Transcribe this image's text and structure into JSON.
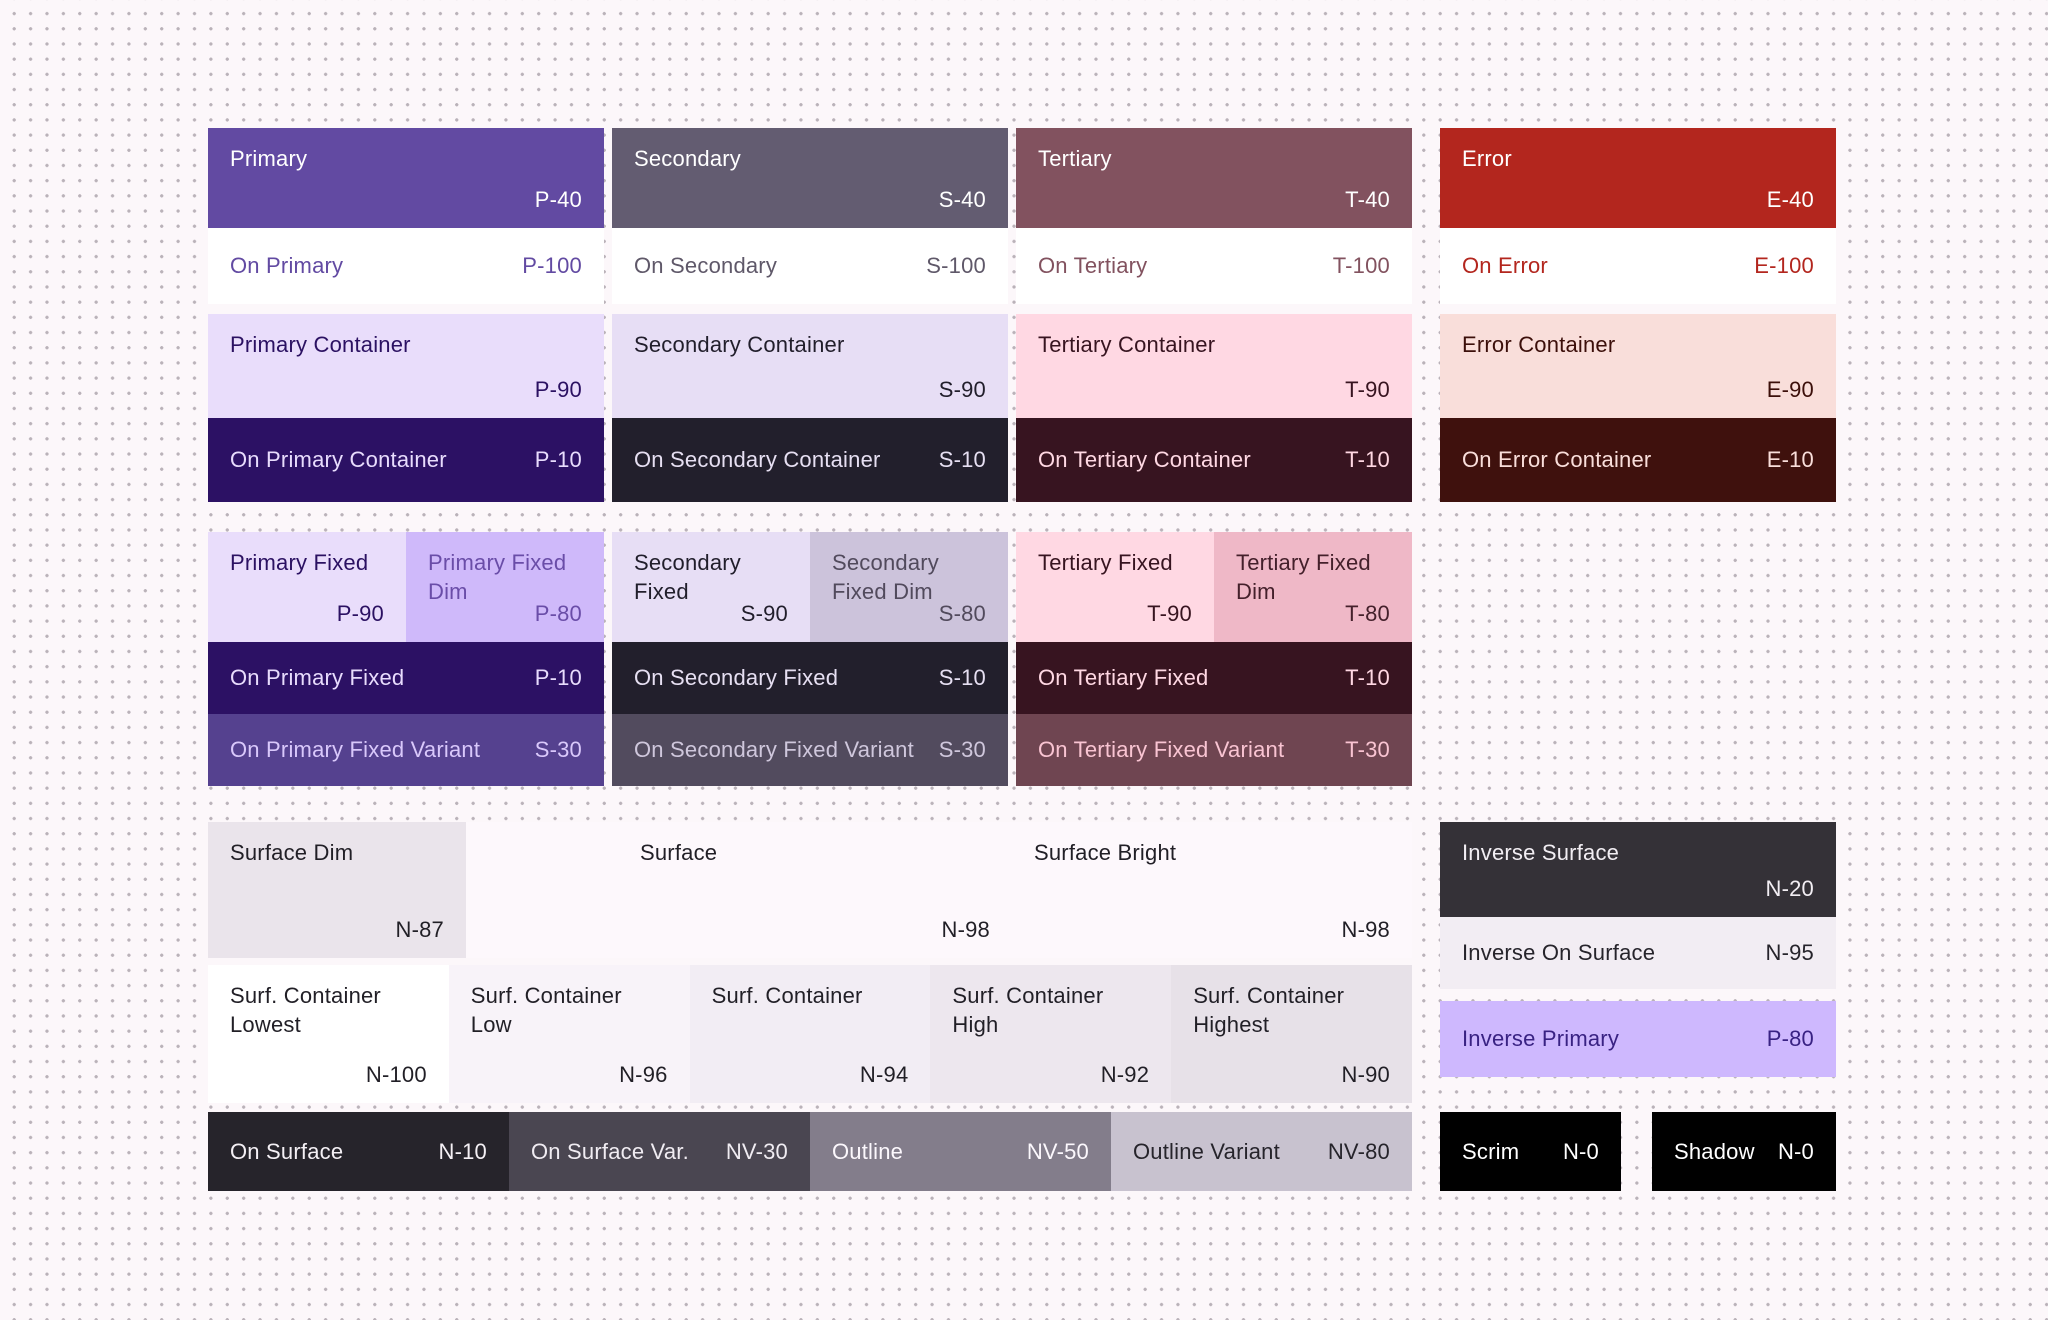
{
  "title": "Material color scheme palette",
  "canvas": {
    "background": "#FCF7FA",
    "dot_color": "#8E848E"
  },
  "columns": {
    "primary": {
      "main": {
        "label": "Primary",
        "value": "P-40",
        "bg": "#624AA2",
        "fg": "#FFFFFF"
      },
      "on_main": {
        "label": "On Primary",
        "value": "P-100",
        "bg": "#FFFFFF",
        "fg": "#624AA2"
      },
      "container": {
        "label": "Primary Container",
        "value": "P-90",
        "bg": "#E9DDFB",
        "fg": "#2B1162"
      },
      "on_container": {
        "label": "On Primary Container",
        "value": "P-10",
        "bg": "#2C1164",
        "fg": "#E8DCFD"
      },
      "fixed": {
        "label": "Primary Fixed",
        "value": "P-90",
        "bg": "#E9DDFB",
        "fg": "#2B1162"
      },
      "fixed_dim": {
        "label": "Primary Fixed Dim",
        "value": "P-80",
        "bg": "#CFB9FA",
        "fg": "#6A4DA8"
      },
      "on_fixed": {
        "label": "On Primary Fixed",
        "value": "P-10",
        "bg": "#2C1164",
        "fg": "#E8DCFD"
      },
      "on_fixed_variant": {
        "label": "On Primary Fixed Variant",
        "value": "S-30",
        "bg": "#55418F",
        "fg": "#D9C8FB"
      }
    },
    "secondary": {
      "main": {
        "label": "Secondary",
        "value": "S-40",
        "bg": "#635C71",
        "fg": "#FFFFFF"
      },
      "on_main": {
        "label": "On Secondary",
        "value": "S-100",
        "bg": "#FFFFFF",
        "fg": "#5F5869"
      },
      "container": {
        "label": "Secondary Container",
        "value": "S-90",
        "bg": "#E7DEF5",
        "fg": "#211E2B"
      },
      "on_container": {
        "label": "On Secondary Container",
        "value": "S-10",
        "bg": "#221F2C",
        "fg": "#E6DFF2"
      },
      "fixed": {
        "label": "Secondary Fixed",
        "value": "S-90",
        "bg": "#E7DEF5",
        "fg": "#211E2B"
      },
      "fixed_dim": {
        "label": "Secondary Fixed Dim",
        "value": "S-80",
        "bg": "#CCC3DB",
        "fg": "#514A5C"
      },
      "on_fixed": {
        "label": "On Secondary Fixed",
        "value": "S-10",
        "bg": "#221F2C",
        "fg": "#E6DFF2"
      },
      "on_fixed_variant": {
        "label": "On Secondary Fixed Variant",
        "value": "S-30",
        "bg": "#524B5E",
        "fg": "#CFC7DC"
      }
    },
    "tertiary": {
      "main": {
        "label": "Tertiary",
        "value": "T-40",
        "bg": "#82525F",
        "fg": "#FFFFFF"
      },
      "on_main": {
        "label": "On Tertiary",
        "value": "T-100",
        "bg": "#FFFFFF",
        "fg": "#82525F"
      },
      "container": {
        "label": "Tertiary Container",
        "value": "T-90",
        "bg": "#FFD8E3",
        "fg": "#371420"
      },
      "on_container": {
        "label": "On Tertiary Container",
        "value": "T-10",
        "bg": "#371420",
        "fg": "#FFD8E3"
      },
      "fixed": {
        "label": "Tertiary Fixed",
        "value": "T-90",
        "bg": "#FFD8E3",
        "fg": "#371420"
      },
      "fixed_dim": {
        "label": "Tertiary Fixed Dim",
        "value": "T-80",
        "bg": "#EFB8C7",
        "fg": "#44202B"
      },
      "on_fixed": {
        "label": "On Tertiary Fixed",
        "value": "T-10",
        "bg": "#371420",
        "fg": "#FFD8E3"
      },
      "on_fixed_variant": {
        "label": "On Tertiary Fixed Variant",
        "value": "T-30",
        "bg": "#6F4551",
        "fg": "#F9C4D2"
      }
    },
    "error": {
      "main": {
        "label": "Error",
        "value": "E-40",
        "bg": "#B3261E",
        "fg": "#FFFFFF"
      },
      "on_main": {
        "label": "On Error",
        "value": "E-100",
        "bg": "#FFFFFF",
        "fg": "#B3261E"
      },
      "container": {
        "label": "Error Container",
        "value": "E-90",
        "bg": "#F9DEDA",
        "fg": "#3C0F0A"
      },
      "on_container": {
        "label": "On Error Container",
        "value": "E-10",
        "bg": "#3F110D",
        "fg": "#F9DEDA"
      }
    }
  },
  "surface_row": {
    "dim": {
      "label": "Surface Dim",
      "value": "N-87",
      "bg": "#EAE4EB",
      "fg": "#211F26"
    },
    "surface": {
      "label": "Surface",
      "value": "N-98",
      "bg": "#FDF8FC",
      "fg": "#211F26"
    },
    "bright": {
      "label": "Surface Bright",
      "value": "N-98",
      "bg": "#FDF8FC",
      "fg": "#211F26"
    }
  },
  "surface_containers": [
    {
      "label": "Surf. Container Lowest",
      "value": "N-100",
      "bg": "#FFFFFF",
      "fg": "#211F26"
    },
    {
      "label": "Surf. Container Low",
      "value": "N-96",
      "bg": "#F8F3F9",
      "fg": "#211F26"
    },
    {
      "label": "Surf. Container",
      "value": "N-94",
      "bg": "#F2EDF4",
      "fg": "#211F26"
    },
    {
      "label": "Surf. Container High",
      "value": "N-92",
      "bg": "#EDE7EE",
      "fg": "#211F26"
    },
    {
      "label": "Surf. Container Highest",
      "value": "N-90",
      "bg": "#E7E1E8",
      "fg": "#211F26"
    }
  ],
  "bottom_row": [
    {
      "label": "On Surface",
      "value": "N-10",
      "bg": "#26242B",
      "fg": "#F4F0F5"
    },
    {
      "label": "On Surface Var.",
      "value": "NV-30",
      "bg": "#4A4651",
      "fg": "#F0ECF2"
    },
    {
      "label": "Outline",
      "value": "NV-50",
      "bg": "#837D8B",
      "fg": "#FCF8FD"
    },
    {
      "label": "Outline Variant",
      "value": "NV-80",
      "bg": "#C8C2CF",
      "fg": "#26242B"
    }
  ],
  "inverse": {
    "surface": {
      "label": "Inverse Surface",
      "value": "N-20",
      "bg": "#343137",
      "fg": "#F2EEF3"
    },
    "on_surface": {
      "label": "Inverse On Surface",
      "value": "N-95",
      "bg": "#F2EDF3",
      "fg": "#26242B"
    },
    "primary": {
      "label": "Inverse Primary",
      "value": "P-80",
      "bg": "#CEB8FE",
      "fg": "#392283"
    }
  },
  "scrim": {
    "label": "Scrim",
    "value": "N-0",
    "bg": "#000000",
    "fg": "#FFFFFF"
  },
  "shadow": {
    "label": "Shadow",
    "value": "N-0",
    "bg": "#000000",
    "fg": "#FFFFFF"
  }
}
